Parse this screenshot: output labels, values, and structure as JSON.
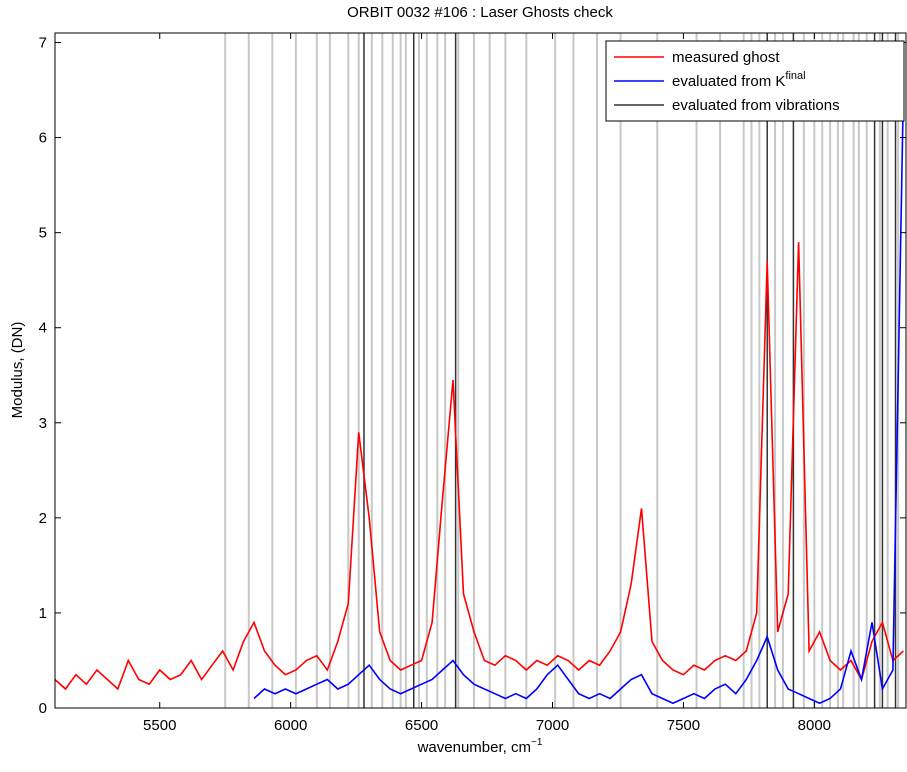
{
  "chart_data": {
    "type": "line",
    "title": "ORBIT 0032 #106 : Laser Ghosts check",
    "xlabel": "wavenumber, cm",
    "xlabel_sup": "−1",
    "ylabel": "Modulus, (DN)",
    "xlim": [
      5100,
      8350
    ],
    "ylim": [
      0,
      7.1
    ],
    "xticks": [
      5500,
      6000,
      6500,
      7000,
      7500,
      8000
    ],
    "yticks": [
      0,
      1,
      2,
      3,
      4,
      5,
      6,
      7
    ],
    "legend": "upper right",
    "series": [
      {
        "name": "measured ghost",
        "color": "#ff0000",
        "x": [
          5100,
          5140,
          5180,
          5220,
          5260,
          5300,
          5340,
          5380,
          5420,
          5460,
          5500,
          5540,
          5580,
          5620,
          5660,
          5700,
          5740,
          5780,
          5820,
          5860,
          5900,
          5940,
          5980,
          6020,
          6060,
          6100,
          6140,
          6180,
          6220,
          6260,
          6300,
          6340,
          6380,
          6420,
          6460,
          6500,
          6540,
          6580,
          6620,
          6660,
          6700,
          6740,
          6780,
          6820,
          6860,
          6900,
          6940,
          6980,
          7020,
          7060,
          7100,
          7140,
          7180,
          7220,
          7260,
          7300,
          7340,
          7380,
          7420,
          7460,
          7500,
          7540,
          7580,
          7620,
          7660,
          7700,
          7740,
          7780,
          7820,
          7860,
          7900,
          7940,
          7980,
          8020,
          8060,
          8100,
          8140,
          8180,
          8220,
          8260,
          8300,
          8340
        ],
        "values": [
          0.3,
          0.2,
          0.35,
          0.25,
          0.4,
          0.3,
          0.2,
          0.5,
          0.3,
          0.25,
          0.4,
          0.3,
          0.35,
          0.5,
          0.3,
          0.45,
          0.6,
          0.4,
          0.7,
          0.9,
          0.6,
          0.45,
          0.35,
          0.4,
          0.5,
          0.55,
          0.4,
          0.7,
          1.1,
          2.9,
          2.0,
          0.8,
          0.5,
          0.4,
          0.45,
          0.5,
          0.9,
          2.2,
          3.45,
          1.2,
          0.8,
          0.5,
          0.45,
          0.55,
          0.5,
          0.4,
          0.5,
          0.45,
          0.55,
          0.5,
          0.4,
          0.5,
          0.45,
          0.6,
          0.8,
          1.3,
          2.1,
          0.7,
          0.5,
          0.4,
          0.35,
          0.45,
          0.4,
          0.5,
          0.55,
          0.5,
          0.6,
          1.0,
          4.7,
          0.8,
          1.2,
          4.9,
          0.6,
          0.8,
          0.5,
          0.4,
          0.5,
          0.3,
          0.7,
          0.9,
          0.5,
          0.6
        ]
      },
      {
        "name": "evaluated from K",
        "name_sup": "final",
        "color": "#0000ff",
        "x": [
          5860,
          5900,
          5940,
          5980,
          6020,
          6060,
          6100,
          6140,
          6180,
          6220,
          6260,
          6300,
          6340,
          6380,
          6420,
          6460,
          6500,
          6540,
          6580,
          6620,
          6660,
          6700,
          6740,
          6780,
          6820,
          6860,
          6900,
          6940,
          6980,
          7020,
          7060,
          7100,
          7140,
          7180,
          7220,
          7260,
          7300,
          7340,
          7380,
          7420,
          7460,
          7500,
          7540,
          7580,
          7620,
          7660,
          7700,
          7740,
          7780,
          7820,
          7860,
          7900,
          7940,
          7980,
          8020,
          8060,
          8100,
          8140,
          8180,
          8220,
          8260,
          8300,
          8340
        ],
        "values": [
          0.1,
          0.2,
          0.15,
          0.2,
          0.15,
          0.2,
          0.25,
          0.3,
          0.2,
          0.25,
          0.35,
          0.45,
          0.3,
          0.2,
          0.15,
          0.2,
          0.25,
          0.3,
          0.4,
          0.5,
          0.35,
          0.25,
          0.2,
          0.15,
          0.1,
          0.15,
          0.1,
          0.2,
          0.35,
          0.45,
          0.3,
          0.15,
          0.1,
          0.15,
          0.1,
          0.2,
          0.3,
          0.35,
          0.15,
          0.1,
          0.05,
          0.1,
          0.15,
          0.1,
          0.2,
          0.25,
          0.15,
          0.3,
          0.5,
          0.75,
          0.4,
          0.2,
          0.15,
          0.1,
          0.05,
          0.1,
          0.2,
          0.6,
          0.3,
          0.9,
          0.2,
          0.4,
          6.5
        ]
      }
    ],
    "vlines": [
      {
        "color": "#c8c8c8",
        "x": [
          5750,
          5840,
          5930,
          6020,
          6100,
          6150,
          6220,
          6260,
          6310,
          6350,
          6390,
          6420,
          6440,
          6490,
          6520,
          6560,
          6590,
          6640,
          6700,
          6760,
          6820,
          6900,
          7010,
          7080,
          7170,
          7260,
          7400,
          7550,
          7640,
          7730,
          7760,
          7790,
          7850,
          7880,
          7960,
          8000,
          8030,
          8060,
          8090,
          8110,
          8150,
          8170,
          8200,
          8250,
          8280,
          8320
        ]
      },
      {
        "name": "evaluated from vibrations",
        "color": "#333333",
        "x": [
          6280,
          6470,
          6630,
          7820,
          7920,
          8230,
          8260,
          8310
        ]
      }
    ]
  }
}
